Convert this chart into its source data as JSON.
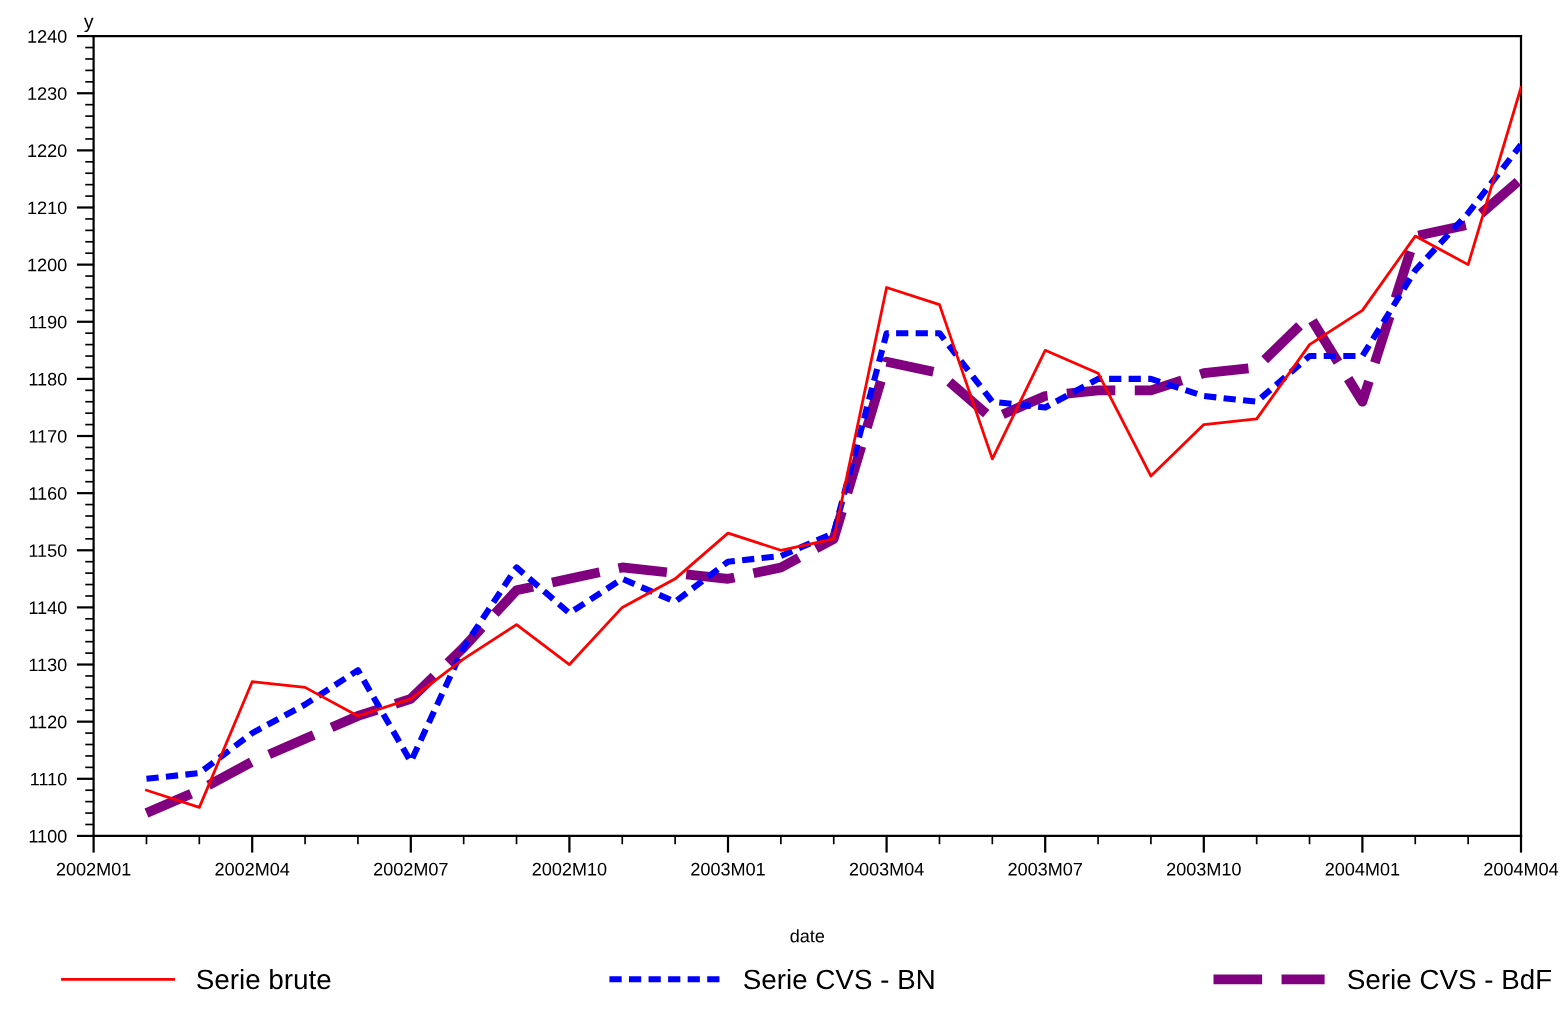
{
  "chart_data": {
    "type": "line",
    "xlabel": "date",
    "ylabel": "y",
    "x": [
      "2002-02",
      "2002-03",
      "2002-04",
      "2002-05",
      "2002-06",
      "2002-07",
      "2002-08",
      "2002-09",
      "2002-10",
      "2002-11",
      "2002-12",
      "2003-01",
      "2003-02",
      "2003-03",
      "2003-04",
      "2003-05",
      "2003-06",
      "2003-07",
      "2003-08",
      "2003-09",
      "2003-10",
      "2003-11",
      "2003-12",
      "2004-01",
      "2004-02",
      "2004-03",
      "2004-04"
    ],
    "series": [
      {
        "name": "Serie brute",
        "color": "#ff0000",
        "line_style": "solid",
        "values": [
          1108,
          1105,
          1127,
          1126,
          1121,
          1124,
          1131,
          1137,
          1130,
          1140,
          1145,
          1153,
          1150,
          1152,
          1196,
          1193,
          1166,
          1185,
          1181,
          1163,
          1172,
          1173,
          1186,
          1192,
          1205,
          1200,
          1231
        ]
      },
      {
        "name": "Serie CVS - BN",
        "color": "#0000ff",
        "line_style": "dotted",
        "values": [
          1110,
          1111,
          1118,
          1123,
          1129,
          1113,
          1133,
          1147,
          1139,
          1145,
          1141,
          1148,
          1149,
          1153,
          1188,
          1188,
          1176,
          1175,
          1180,
          1180,
          1177,
          1176,
          1184,
          1184,
          1199,
          1209,
          1221
        ]
      },
      {
        "name": "Serie CVS - BdF",
        "color": "#800080",
        "line_style": "dashed",
        "values": [
          1104,
          1108,
          1113,
          1117,
          1121,
          1124,
          1133,
          1143,
          1145,
          1147,
          1146,
          1145,
          1147,
          1152,
          1183,
          1181,
          1173,
          1177,
          1178,
          1178,
          1181,
          1182,
          1191,
          1176,
          1205,
          1207,
          1215
        ]
      }
    ],
    "xlim": [
      "2002-01",
      "2004-04"
    ],
    "xticks": [
      {
        "value": "2002-01",
        "label": "2002M01"
      },
      {
        "value": "2002-04",
        "label": "2002M04"
      },
      {
        "value": "2002-07",
        "label": "2002M07"
      },
      {
        "value": "2002-10",
        "label": "2002M10"
      },
      {
        "value": "2003-01",
        "label": "2003M01"
      },
      {
        "value": "2003-04",
        "label": "2003M04"
      },
      {
        "value": "2003-07",
        "label": "2003M07"
      },
      {
        "value": "2003-10",
        "label": "2003M10"
      },
      {
        "value": "2004-01",
        "label": "2004M01"
      },
      {
        "value": "2004-04",
        "label": "2004M04"
      }
    ],
    "ylim": [
      1100,
      1240
    ],
    "yticks": [
      1100,
      1110,
      1120,
      1130,
      1140,
      1150,
      1160,
      1170,
      1180,
      1190,
      1200,
      1210,
      1220,
      1230,
      1240
    ],
    "grid": false,
    "legend": "bottom",
    "marker": "none"
  }
}
